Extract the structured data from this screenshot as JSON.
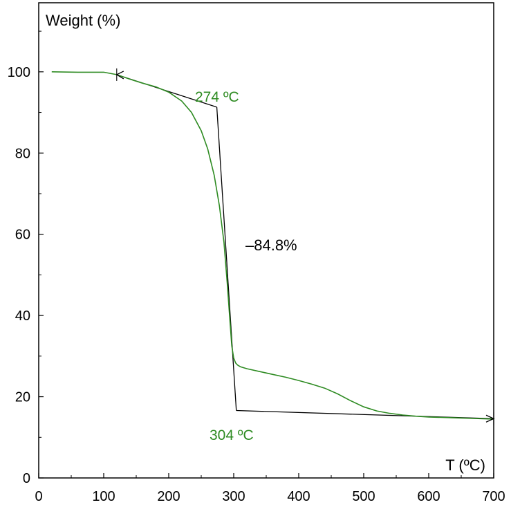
{
  "chart_data": {
    "type": "line",
    "title": "",
    "ylabel": "Weight (%)",
    "xlabel": "T (ºC)",
    "xlim": [
      0,
      700
    ],
    "ylim": [
      0,
      117
    ],
    "x_ticks": [
      0,
      100,
      200,
      300,
      400,
      500,
      600,
      700
    ],
    "y_ticks": [
      0,
      20,
      40,
      60,
      80,
      100
    ],
    "grid": false,
    "series": [
      {
        "color": "#2e8b22",
        "x": [
          20,
          60,
          100,
          120,
          140,
          160,
          180,
          200,
          220,
          235,
          250,
          260,
          270,
          278,
          285,
          290,
          294,
          297,
          300,
          303,
          306,
          310,
          320,
          340,
          360,
          380,
          400,
          420,
          440,
          460,
          480,
          500,
          520,
          540,
          560,
          580,
          600,
          620,
          640,
          660,
          680,
          700
        ],
        "y": [
          100,
          99.9,
          99.9,
          99.3,
          98.2,
          97.2,
          96.3,
          95.0,
          92.8,
          90.0,
          85.5,
          81.0,
          74.5,
          67.0,
          58.0,
          48.0,
          39.0,
          32.5,
          29.5,
          28.3,
          27.8,
          27.4,
          26.9,
          26.2,
          25.5,
          24.8,
          24.0,
          23.1,
          22.1,
          20.7,
          19.0,
          17.5,
          16.5,
          15.9,
          15.5,
          15.2,
          15.0,
          14.9,
          14.8,
          14.7,
          14.6,
          14.5
        ]
      }
    ],
    "tangent_lines": [
      {
        "x": [
          120,
          274
        ],
        "y": [
          99.3,
          91.3
        ]
      },
      {
        "x": [
          274,
          304
        ],
        "y": [
          91.3,
          16.6
        ]
      },
      {
        "x": [
          304,
          700
        ],
        "y": [
          16.6,
          14.6
        ]
      }
    ],
    "annotations": [
      {
        "text": "274 ºC",
        "x": 274,
        "y": 91.3,
        "color": "#2e8b22"
      },
      {
        "text": "304 ºC",
        "x": 304,
        "y": 16.6,
        "color": "#2e8b22"
      },
      {
        "text": "–84.8%",
        "x": 355,
        "y": 58,
        "color": "#000000"
      }
    ]
  }
}
